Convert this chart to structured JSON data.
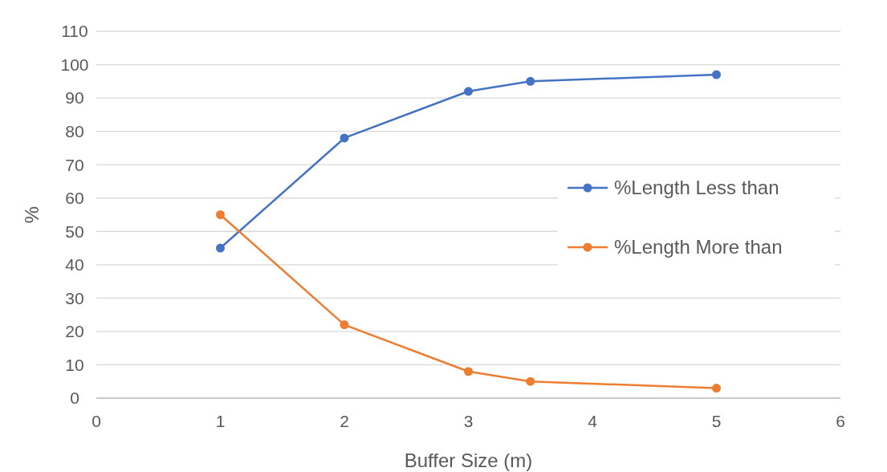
{
  "chart_data": {
    "type": "line",
    "xlabel": "Buffer Size (m)",
    "ylabel": "%",
    "x": [
      1,
      2,
      3,
      3.5,
      5
    ],
    "series": [
      {
        "name": "%Length Less than",
        "color": "#4472c4",
        "values": [
          45,
          78,
          92,
          95,
          97
        ]
      },
      {
        "name": "%Length More than",
        "color": "#ed7d31",
        "values": [
          55,
          22,
          8,
          5,
          3
        ]
      }
    ],
    "xlim": [
      0,
      6
    ],
    "xticks": [
      0,
      1,
      2,
      3,
      4,
      5,
      6
    ],
    "ylim": [
      0,
      110
    ],
    "yticks": [
      0,
      10,
      20,
      30,
      40,
      50,
      60,
      70,
      80,
      90,
      100,
      110
    ],
    "grid": "y",
    "legend": "right",
    "marker": "circle",
    "line_style": "solid"
  }
}
